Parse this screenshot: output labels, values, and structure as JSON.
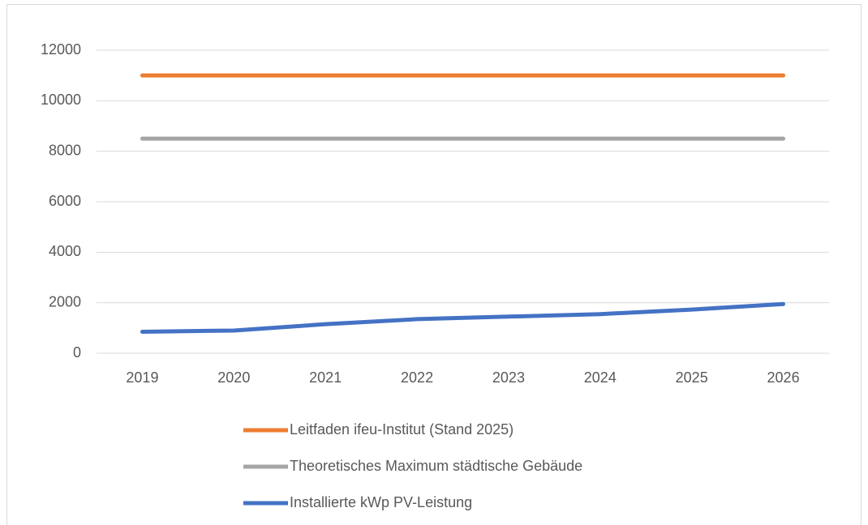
{
  "chart_data": {
    "type": "line",
    "categories": [
      "2019",
      "2020",
      "2021",
      "2022",
      "2023",
      "2024",
      "2025",
      "2026"
    ],
    "series": [
      {
        "name": "Leitfaden ifeu-Institut (Stand 2025)",
        "color": "#ed7d31",
        "values": [
          11000,
          11000,
          11000,
          11000,
          11000,
          11000,
          11000,
          11000
        ]
      },
      {
        "name": "Theoretisches Maximum städtische Gebäude",
        "color": "#a5a5a5",
        "values": [
          8500,
          8500,
          8500,
          8500,
          8500,
          8500,
          8500,
          8500
        ]
      },
      {
        "name": "Installierte kWp PV-Leistung",
        "color": "#4472c4",
        "values": [
          850,
          900,
          1150,
          1350,
          1450,
          1550,
          1730,
          1950
        ]
      }
    ],
    "ylim": [
      0,
      12000
    ],
    "yticks": [
      0,
      2000,
      4000,
      6000,
      8000,
      10000,
      12000
    ],
    "grid": true,
    "legend": "bottom"
  }
}
